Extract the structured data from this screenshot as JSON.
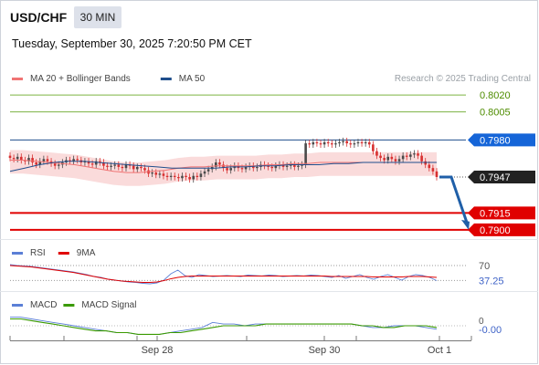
{
  "header": {
    "symbol": "USD/CHF",
    "timeframe": "30 MIN",
    "datetime": "Tuesday, September 30, 2025 7:20:50 PM CET"
  },
  "watermark": "Research © 2025 Trading Central",
  "legend_main": [
    {
      "label": "MA 20 + Bollinger Bands",
      "color": "#f07474"
    },
    {
      "label": "MA 50",
      "color": "#1f4e8c"
    }
  ],
  "legend_rsi": [
    {
      "label": "RSI",
      "color": "#5b7fd6"
    },
    {
      "label": "9MA",
      "color": "#e00000"
    }
  ],
  "legend_macd": [
    {
      "label": "MACD",
      "color": "#5b7fd6"
    },
    {
      "label": "MACD Signal",
      "color": "#3a9a00"
    }
  ],
  "colors": {
    "resistance": "#7cb342",
    "resistance_text": "#4e8c00",
    "pivot": "#1f4e8c",
    "pivot_tag": "#1565d8",
    "support": "#e00000",
    "last_tag": "#222222",
    "arrow": "#1f5fa8",
    "band": "#f9d5d5",
    "bull": "#4a4a4a",
    "bear": "#d83030"
  },
  "chart_data": {
    "type": "candlestick",
    "ylim": [
      0.7895,
      0.8025
    ],
    "x_ticks": [
      "Sep 28",
      "Sep 30",
      "Oct 1"
    ],
    "close_series": [
      0.7964,
      0.7963,
      0.7965,
      0.7962,
      0.7961,
      0.7964,
      0.796,
      0.7958,
      0.7961,
      0.7963,
      0.7961,
      0.7959,
      0.7957,
      0.7958,
      0.796,
      0.7962,
      0.7961,
      0.7963,
      0.7962,
      0.796,
      0.7961,
      0.7959,
      0.7958,
      0.7961,
      0.796,
      0.7957,
      0.7956,
      0.7957,
      0.7958,
      0.7956,
      0.7955,
      0.7958,
      0.7957,
      0.7954,
      0.7956,
      0.7955,
      0.7953,
      0.795,
      0.7951,
      0.7949,
      0.795,
      0.7948,
      0.7947,
      0.7948,
      0.7947,
      0.7946,
      0.7948,
      0.7947,
      0.7945,
      0.7948,
      0.7947,
      0.795,
      0.7952,
      0.7954,
      0.7956,
      0.796,
      0.7958,
      0.7955,
      0.7953,
      0.7955,
      0.7957,
      0.7955,
      0.7954,
      0.7956,
      0.7957,
      0.7955,
      0.7956,
      0.7958,
      0.7957,
      0.7956,
      0.7955,
      0.7957,
      0.7958,
      0.7956,
      0.7957,
      0.7958,
      0.7956,
      0.7957,
      0.7958,
      0.7977,
      0.7976,
      0.7978,
      0.7977,
      0.7976,
      0.7978,
      0.7977,
      0.7976,
      0.7977,
      0.7978,
      0.7979,
      0.7977,
      0.7976,
      0.7977,
      0.7978,
      0.7977,
      0.7978,
      0.7976,
      0.797,
      0.7966,
      0.7964,
      0.7962,
      0.7965,
      0.7963,
      0.7961,
      0.7963,
      0.7966,
      0.7965,
      0.7967,
      0.7968,
      0.7966,
      0.7961,
      0.7958,
      0.7955,
      0.7952,
      0.7947
    ],
    "ma20": [
      0.7962,
      0.7962,
      0.7961,
      0.796,
      0.7959,
      0.7958,
      0.7956,
      0.7954,
      0.7952,
      0.7951,
      0.7951,
      0.7952,
      0.7953,
      0.7955,
      0.7956,
      0.7956,
      0.7957,
      0.7957,
      0.7957,
      0.7957,
      0.7958,
      0.7958,
      0.7959,
      0.7959,
      0.796,
      0.796,
      0.796,
      0.796,
      0.796,
      0.796,
      0.796,
      0.796,
      0.796,
      0.796
    ],
    "ma50": [
      0.7952,
      0.7955,
      0.7958,
      0.796,
      0.7961,
      0.7961,
      0.796,
      0.7959,
      0.7958,
      0.7957,
      0.7956,
      0.7955,
      0.7955,
      0.7955,
      0.7955,
      0.7956,
      0.7956,
      0.7957,
      0.7957,
      0.7958,
      0.7958,
      0.7958,
      0.7959,
      0.7959,
      0.796,
      0.796,
      0.796,
      0.796,
      0.796,
      0.796
    ],
    "levels": [
      {
        "price": 0.802,
        "label": "0.8020",
        "kind": "resistance"
      },
      {
        "price": 0.8005,
        "label": "0.8005",
        "kind": "resistance"
      },
      {
        "price": 0.798,
        "label": "0.7980",
        "kind": "pivot"
      },
      {
        "price": 0.7947,
        "label": "0.7947",
        "kind": "last"
      },
      {
        "price": 0.7915,
        "label": "0.7915",
        "kind": "support"
      },
      {
        "price": 0.79,
        "label": "0.7900",
        "kind": "support"
      }
    ],
    "projection": {
      "from": 0.7947,
      "to": 0.79
    },
    "rsi": {
      "ylim": [
        20,
        80
      ],
      "levels": [
        "70",
        "37.25"
      ],
      "rsi": [
        72,
        70,
        69,
        68,
        66,
        64,
        62,
        60,
        58,
        56,
        53,
        50,
        46,
        44,
        40,
        38,
        36,
        34,
        33,
        31,
        30,
        32,
        38,
        52,
        60,
        48,
        44,
        50,
        48,
        46,
        47,
        48,
        47,
        46,
        49,
        48,
        47,
        49,
        48,
        46,
        47,
        48,
        47,
        49,
        48,
        46,
        44,
        48,
        42,
        46,
        50,
        44,
        40,
        46,
        50,
        44,
        38,
        46,
        50,
        48,
        44,
        37
      ],
      "ma9": [
        70,
        69,
        68,
        67,
        65,
        63,
        61,
        59,
        57,
        55,
        52,
        49,
        46,
        43,
        40,
        38,
        36,
        35,
        34,
        33,
        33,
        34,
        37,
        41,
        44,
        46,
        47,
        47,
        47,
        47,
        47,
        47,
        47,
        47,
        47,
        47,
        47,
        47,
        47,
        47,
        47,
        47,
        47,
        47,
        47,
        47,
        46,
        46,
        46,
        46,
        46,
        46,
        45,
        45,
        45,
        45,
        45,
        46,
        46,
        46,
        45,
        44
      ]
    },
    "macd": {
      "ylim": [
        -0.0008,
        0.0008
      ],
      "levels": [
        "0",
        "-0.00"
      ],
      "macd": [
        0.0005,
        0.0005,
        0.0004,
        0.0003,
        0.0002,
        0.0001,
        0.0,
        -0.0001,
        -0.0002,
        -0.0003,
        -0.0004,
        -0.0004,
        -0.0005,
        -0.0005,
        -0.0005,
        -0.0004,
        -0.0003,
        -0.0002,
        -0.0001,
        0.0002,
        0.0001,
        0.0001,
        0.0,
        0.0001,
        0.0001,
        0.0001,
        0.0001,
        0.0001,
        0.0001,
        0.0001,
        0.0001,
        0.0001,
        0.0001,
        0.0,
        -0.0001,
        -0.0001,
        0.0,
        0.0,
        0.0,
        -0.0001,
        -0.0002
      ],
      "signal": [
        0.0004,
        0.0004,
        0.0003,
        0.0002,
        0.0001,
        0.0,
        -0.0001,
        -0.0002,
        -0.0003,
        -0.0003,
        -0.0004,
        -0.0004,
        -0.0005,
        -0.0005,
        -0.0005,
        -0.0004,
        -0.0004,
        -0.0003,
        -0.0002,
        -0.0001,
        0.0,
        0.0,
        0.0,
        0.0,
        0.0001,
        0.0001,
        0.0001,
        0.0001,
        0.0001,
        0.0001,
        0.0001,
        0.0001,
        0.0001,
        0.0,
        0.0,
        -0.0001,
        -0.0001,
        0.0,
        0.0,
        0.0,
        -0.0001
      ]
    }
  }
}
